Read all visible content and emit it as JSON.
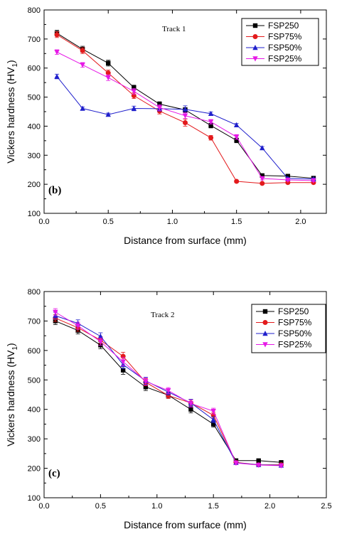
{
  "chart_data": [
    {
      "type": "line",
      "panel_label": "(b)",
      "annotation": "Track 1",
      "xlabel": "Distance from surface (mm)",
      "ylabel_main": "Vickers hardness (HV",
      "ylabel_sub": "1",
      "ylabel_close": ")",
      "xlim": [
        0.0,
        2.2
      ],
      "ylim": [
        100,
        800
      ],
      "xticks": [
        "0.0",
        "0.5",
        "1.0",
        "1.5",
        "2.0"
      ],
      "yticks": [
        "100",
        "200",
        "300",
        "400",
        "500",
        "600",
        "700",
        "800"
      ],
      "x": [
        0.1,
        0.3,
        0.5,
        0.7,
        0.9,
        1.1,
        1.3,
        1.5,
        1.7,
        1.9,
        2.1
      ],
      "legend_position": "top-right",
      "series": [
        {
          "name": "FSP250",
          "color": "#000000",
          "marker": "square",
          "values": [
            720,
            665,
            617,
            533,
            476,
            456,
            402,
            351,
            230,
            228,
            221
          ],
          "err": [
            10,
            10,
            10,
            8,
            8,
            8,
            8,
            8,
            5,
            4,
            4
          ]
        },
        {
          "name": "FSP75%",
          "color": "#e31a1c",
          "marker": "circle",
          "values": [
            715,
            660,
            583,
            505,
            452,
            412,
            360,
            210,
            203,
            206,
            206
          ],
          "err": [
            10,
            10,
            10,
            10,
            10,
            12,
            8,
            4,
            4,
            4,
            4
          ]
        },
        {
          "name": "FSP50%",
          "color": "#1f1fcc",
          "marker": "triangle-up",
          "values": [
            571,
            461,
            440,
            461,
            460,
            458,
            443,
            404,
            325,
            220,
            218
          ],
          "err": [
            8,
            5,
            5,
            8,
            8,
            12,
            6,
            5,
            5,
            4,
            4
          ]
        },
        {
          "name": "FSP25%",
          "color": "#e619e6",
          "marker": "triangle-down",
          "values": [
            655,
            611,
            567,
            520,
            464,
            436,
            415,
            363,
            220,
            215,
            213
          ],
          "err": [
            8,
            8,
            10,
            10,
            10,
            10,
            8,
            8,
            5,
            4,
            4
          ]
        }
      ]
    },
    {
      "type": "line",
      "panel_label": "(c)",
      "annotation": "Track 2",
      "xlabel": "Distance from surface (mm)",
      "ylabel_main": "Vickers hardness (HV",
      "ylabel_sub": "1",
      "ylabel_close": ")",
      "xlim": [
        0.0,
        2.5
      ],
      "ylim": [
        100,
        800
      ],
      "xticks": [
        "0.0",
        "0.5",
        "1.0",
        "1.5",
        "2.0",
        "2.5"
      ],
      "yticks": [
        "100",
        "200",
        "300",
        "400",
        "500",
        "600",
        "700",
        "800"
      ],
      "x": [
        0.1,
        0.3,
        0.5,
        0.7,
        0.9,
        1.1,
        1.3,
        1.5,
        1.7,
        1.9,
        2.1
      ],
      "legend_position": "top-right",
      "series": [
        {
          "name": "FSP250",
          "color": "#000000",
          "marker": "square",
          "values": [
            700,
            668,
            618,
            533,
            476,
            448,
            400,
            350,
            226,
            226,
            220
          ],
          "err": [
            12,
            12,
            12,
            14,
            12,
            10,
            12,
            10,
            5,
            4,
            4
          ]
        },
        {
          "name": "FSP75%",
          "color": "#e31a1c",
          "marker": "circle",
          "values": [
            710,
            677,
            635,
            580,
            492,
            447,
            422,
            380,
            220,
            212,
            212
          ],
          "err": [
            12,
            12,
            12,
            14,
            12,
            10,
            12,
            10,
            5,
            4,
            4
          ]
        },
        {
          "name": "FSP50%",
          "color": "#1f1fcc",
          "marker": "triangle-up",
          "values": [
            718,
            692,
            648,
            552,
            497,
            459,
            422,
            365,
            219,
            212,
            210
          ],
          "err": [
            12,
            12,
            12,
            14,
            12,
            10,
            12,
            10,
            5,
            4,
            4
          ]
        },
        {
          "name": "FSP25%",
          "color": "#e619e6",
          "marker": "triangle-down",
          "values": [
            730,
            684,
            630,
            562,
            495,
            464,
            420,
            394,
            218,
            211,
            209
          ],
          "err": [
            12,
            12,
            12,
            14,
            12,
            10,
            12,
            10,
            5,
            4,
            4
          ]
        }
      ]
    }
  ]
}
